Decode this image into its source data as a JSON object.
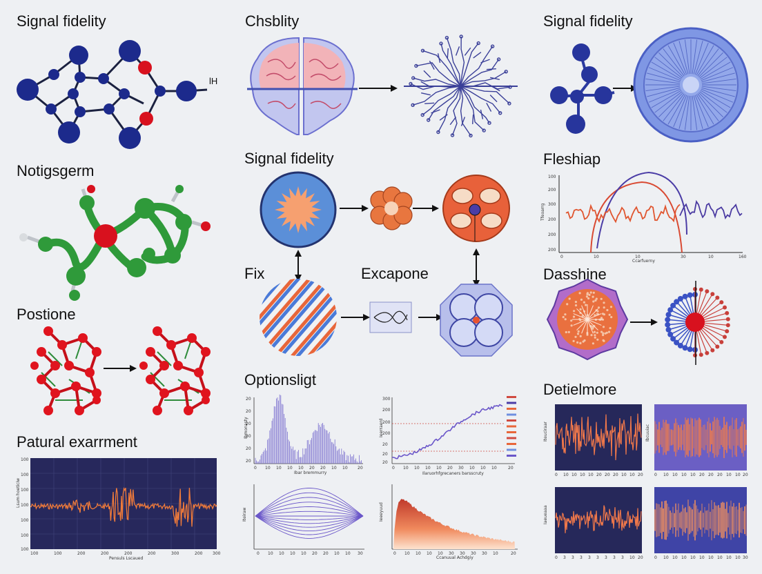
{
  "labels": {
    "signal_fidelity_1": "Signal fidelity",
    "lh": "lH",
    "chsblity": "Chsblity",
    "signal_fidelity_2": "Signal fidelity",
    "signal_fidelity_3": "Signal fidelity",
    "notigsgerm": "Notigsgerm",
    "fleshiap": "Fleshiap",
    "fix": "Fix",
    "excapone": "Excapone",
    "dasshine": "Dasshine",
    "postione": "Postione",
    "optionsligt": "Optionsligt",
    "detielmore": "Detielmore",
    "patural_exarrment": "Patural exarrment"
  },
  "axis_text": {
    "fleshiap_y": "Tfeoarrg",
    "fleshiap_x": "Ccarfuerny",
    "patural_y": "Lsum hoeticiw",
    "patural_x": "Pensuls Lscaued",
    "opt1_y": "Ibmonasty",
    "opt1_x": "Ibar bremmurry",
    "opt2_y": "Ieerraerd",
    "opt2_x": "Ilaruorhfgrecaners barsscruty",
    "opt3_y": "Iteiraw",
    "opt4_y": "Ieeeyuud",
    "opt4_x": "Ccanuual Achdgiy",
    "det1_y": "Iteuciraar",
    "det2_y": "Ibcuuiac",
    "det3_y": "Iaeueaaa"
  },
  "ticks": {
    "fleshiap_y": [
      "100",
      "200",
      "300",
      "200",
      "200",
      "200"
    ],
    "fleshiap_x": [
      "0",
      "10",
      "10",
      "30",
      "10",
      "160"
    ],
    "patural_y": [
      "100",
      "100",
      "100",
      "100",
      "100",
      "100",
      "100"
    ],
    "patural_x": [
      "100",
      "100",
      "200",
      "200",
      "200",
      "200",
      "300",
      "200",
      "300"
    ],
    "opt1_y": [
      "20",
      "20",
      "20",
      "30",
      "20",
      "20"
    ],
    "opt1_x": [
      "0",
      "10",
      "10",
      "10",
      "10",
      "20",
      "20",
      "10",
      "10",
      "20"
    ],
    "opt2_y": [
      "300",
      "200",
      "200",
      "200",
      "20",
      "20",
      "20"
    ],
    "opt2_x": [
      "0",
      "10",
      "10",
      "10",
      "10",
      "20",
      "30",
      "10",
      "10",
      "10",
      "20"
    ],
    "opt3_x": [
      "0",
      "10",
      "10",
      "10",
      "10",
      "20",
      "20",
      "10",
      "10",
      "30"
    ],
    "opt4_x": [
      "0",
      "10",
      "10",
      "10",
      "10",
      "30",
      "30",
      "30",
      "30",
      "10",
      "20"
    ],
    "det1_x": [
      "0",
      "10",
      "10",
      "10",
      "10",
      "20",
      "20",
      "20",
      "10",
      "10",
      "20"
    ],
    "det2_x": [
      "0",
      "10",
      "10",
      "10",
      "10",
      "20",
      "20",
      "20",
      "10",
      "10",
      "20"
    ],
    "det3_x": [
      "0",
      "3",
      "3",
      "3",
      "3",
      "3",
      "3",
      "3",
      "3",
      "10",
      "20"
    ],
    "det4_x": [
      "0",
      "10",
      "10",
      "10",
      "10",
      "10",
      "10",
      "10",
      "10",
      "10",
      "30"
    ]
  },
  "colors": {
    "navy": "#1f2d8a",
    "red": "#d8111e",
    "green": "#2f9a3a",
    "orange": "#e8663a",
    "dark_panel": "#24255a",
    "violet": "#6b5bd0",
    "pale_blue": "#6f8fe0"
  }
}
